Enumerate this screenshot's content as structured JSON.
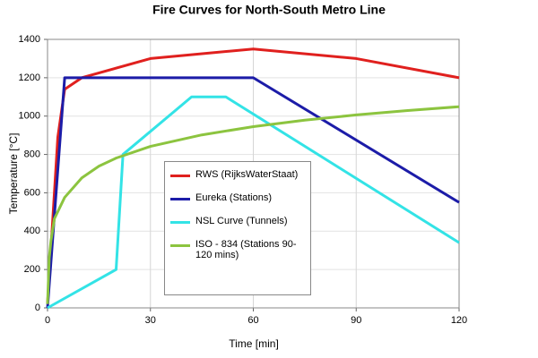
{
  "chart_data": {
    "type": "line",
    "title": "Fire Curves for North-South Metro Line",
    "x_label": "Time [min]",
    "y_label": "Temperature [°C]",
    "xlim": [
      0,
      120
    ],
    "ylim": [
      0,
      1400
    ],
    "xticks": [
      0,
      30,
      60,
      90,
      120
    ],
    "yticks": [
      0,
      200,
      400,
      600,
      800,
      1000,
      1200,
      1400
    ],
    "grid": true,
    "series": [
      {
        "name": "RWS (RijksWaterStaat)",
        "color": "#e0201e",
        "x": [
          0,
          3,
          5,
          10,
          30,
          60,
          90,
          120
        ],
        "values": [
          20,
          890,
          1140,
          1200,
          1300,
          1350,
          1300,
          1200
        ]
      },
      {
        "name": "Eureka (Stations)",
        "color": "#1c1ca8",
        "x": [
          0,
          5,
          60,
          120
        ],
        "values": [
          0,
          1200,
          1200,
          550
        ]
      },
      {
        "name": "NSL Curve (Tunnels)",
        "color": "#33e3e6",
        "x": [
          0,
          20,
          22,
          42,
          52,
          120
        ],
        "values": [
          0,
          200,
          800,
          1100,
          1100,
          340
        ]
      },
      {
        "name": "ISO - 834 (Stations 90-120 mins)",
        "color": "#8cc43f",
        "x": [
          0,
          0.5,
          1,
          2,
          5,
          10,
          15,
          20,
          30,
          45,
          60,
          75,
          90,
          105,
          120
        ],
        "values": [
          20,
          261,
          349,
          465,
          576,
          678,
          739,
          781,
          842,
          902,
          945,
          979,
          1006,
          1029,
          1049
        ]
      }
    ]
  }
}
